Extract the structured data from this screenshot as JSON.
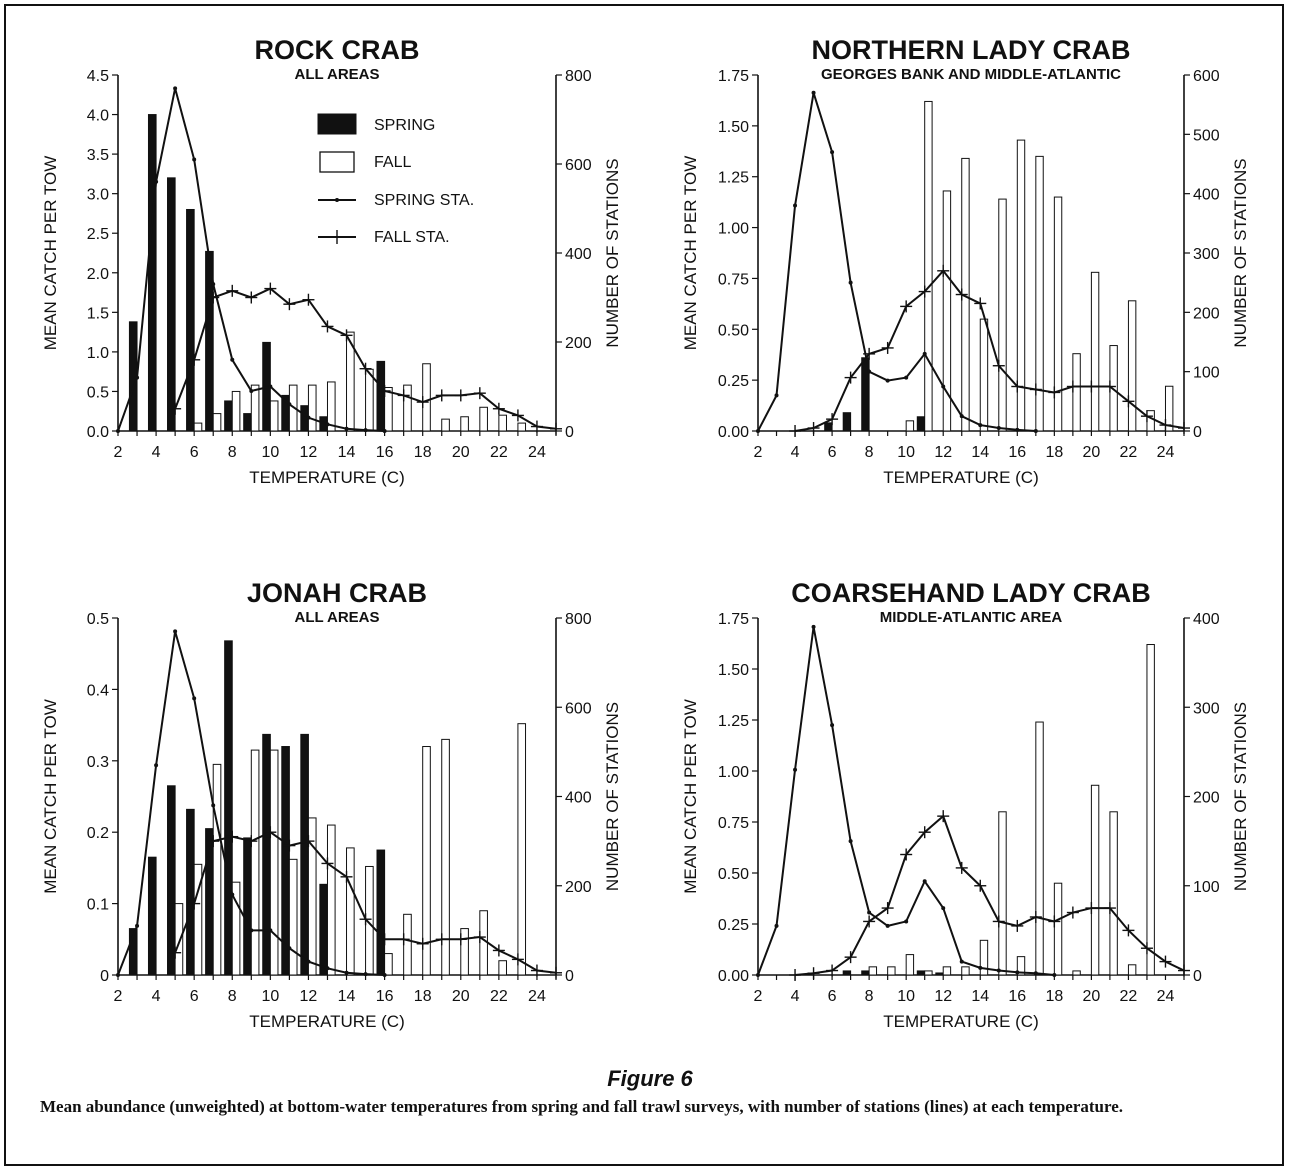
{
  "figure": {
    "label": "Figure 6",
    "caption": "Mean abundance (unweighted) at bottom-water temperatures from spring and fall trawl surveys, with number of stations (lines) at each temperature."
  },
  "legend": {
    "spring": "SPRING",
    "fall": "FALL",
    "spring_sta": "SPRING STA.",
    "fall_sta": "FALL STA."
  },
  "chart_data": [
    {
      "type": "bar",
      "title": "ROCK CRAB",
      "subtitle": "ALL AREAS",
      "xlabel": "TEMPERATURE (C)",
      "ylabel": "MEAN CATCH PER TOW",
      "y2label": "NUMBER OF STATIONS",
      "x_ticks": [
        2,
        4,
        6,
        8,
        10,
        12,
        14,
        16,
        18,
        20,
        22,
        24
      ],
      "x_range": [
        2,
        25
      ],
      "ylim": [
        0,
        4.5
      ],
      "y_ticks": [
        "0.0",
        "0.5",
        "1.0",
        "1.5",
        "2.0",
        "2.5",
        "3.0",
        "3.5",
        "4.0",
        "4.5"
      ],
      "y2lim": [
        0,
        800
      ],
      "y2_ticks": [
        "0",
        "200",
        "400",
        "600",
        "800"
      ],
      "legend": true,
      "series": [
        {
          "name": "SPRING",
          "kind": "bar",
          "x": [
            3,
            4,
            5,
            6,
            7,
            8,
            9,
            10,
            11,
            12,
            13,
            16
          ],
          "values": [
            1.38,
            4.0,
            3.2,
            2.8,
            2.27,
            0.38,
            0.22,
            1.12,
            0.45,
            0.32,
            0.18,
            0.88
          ]
        },
        {
          "name": "FALL",
          "kind": "bar",
          "x": [
            6,
            7,
            8,
            9,
            10,
            11,
            12,
            13,
            14,
            15,
            16,
            17,
            18,
            19,
            20,
            21,
            22,
            23
          ],
          "values": [
            0.1,
            0.22,
            0.5,
            0.58,
            0.38,
            0.58,
            0.58,
            0.62,
            1.25,
            0.78,
            0.55,
            0.58,
            0.85,
            0.15,
            0.18,
            0.3,
            0.2,
            0.1
          ]
        },
        {
          "name": "SPRING STA.",
          "kind": "line",
          "axis": "right",
          "x": [
            2,
            3,
            4,
            5,
            6,
            7,
            8,
            9,
            10,
            11,
            12,
            13,
            14,
            15,
            16
          ],
          "values": [
            0,
            120,
            560,
            770,
            610,
            330,
            160,
            90,
            100,
            60,
            30,
            15,
            5,
            2,
            0
          ]
        },
        {
          "name": "FALL STA.",
          "kind": "line",
          "axis": "right",
          "x": [
            5,
            6,
            7,
            8,
            9,
            10,
            11,
            12,
            13,
            14,
            15,
            16,
            17,
            18,
            19,
            20,
            21,
            22,
            23,
            24,
            25
          ],
          "values": [
            50,
            160,
            300,
            315,
            300,
            320,
            285,
            295,
            235,
            215,
            140,
            90,
            80,
            65,
            80,
            80,
            85,
            50,
            35,
            10,
            5
          ]
        }
      ]
    },
    {
      "type": "bar",
      "title": "NORTHERN LADY CRAB",
      "subtitle": "GEORGES BANK AND MIDDLE-ATLANTIC",
      "xlabel": "TEMPERATURE (C)",
      "ylabel": "MEAN CATCH PER TOW",
      "y2label": "NUMBER OF STATIONS",
      "x_ticks": [
        2,
        4,
        6,
        8,
        10,
        12,
        14,
        16,
        18,
        20,
        22,
        24
      ],
      "x_range": [
        2,
        25
      ],
      "ylim": [
        0,
        1.75
      ],
      "y_ticks": [
        "0.00",
        "0.25",
        "0.50",
        "0.75",
        "1.00",
        "1.25",
        "1.50",
        "1.75"
      ],
      "y2lim": [
        0,
        600
      ],
      "y2_ticks": [
        "0",
        "100",
        "200",
        "300",
        "400",
        "500",
        "600"
      ],
      "legend": false,
      "series": [
        {
          "name": "SPRING",
          "kind": "bar",
          "x": [
            6,
            7,
            8,
            11
          ],
          "values": [
            0.04,
            0.09,
            0.36,
            0.07
          ]
        },
        {
          "name": "FALL",
          "kind": "bar",
          "x": [
            10,
            11,
            12,
            13,
            14,
            15,
            16,
            17,
            18,
            19,
            20,
            21,
            22,
            23,
            24
          ],
          "values": [
            0.05,
            1.62,
            1.18,
            1.34,
            0.55,
            1.14,
            1.43,
            1.35,
            1.15,
            0.38,
            0.78,
            0.42,
            0.64,
            0.1,
            0.22
          ]
        },
        {
          "name": "SPRING STA.",
          "kind": "line",
          "axis": "right",
          "x": [
            2,
            3,
            4,
            5,
            6,
            7,
            8,
            9,
            10,
            11,
            12,
            13,
            14,
            15,
            16,
            17
          ],
          "values": [
            0,
            60,
            380,
            570,
            470,
            250,
            100,
            85,
            90,
            130,
            75,
            25,
            10,
            5,
            2,
            0
          ]
        },
        {
          "name": "FALL STA.",
          "kind": "line",
          "axis": "right",
          "x": [
            4,
            5,
            6,
            7,
            8,
            9,
            10,
            11,
            12,
            13,
            14,
            15,
            16,
            17,
            18,
            19,
            20,
            21,
            22,
            23,
            24,
            25
          ],
          "values": [
            0,
            5,
            20,
            90,
            130,
            140,
            210,
            235,
            270,
            230,
            215,
            110,
            75,
            70,
            65,
            75,
            75,
            75,
            50,
            25,
            10,
            5
          ]
        }
      ]
    },
    {
      "type": "bar",
      "title": "JONAH CRAB",
      "subtitle": "ALL AREAS",
      "xlabel": "TEMPERATURE (C)",
      "ylabel": "MEAN CATCH PER TOW",
      "y2label": "NUMBER OF STATIONS",
      "x_ticks": [
        2,
        4,
        6,
        8,
        10,
        12,
        14,
        16,
        18,
        20,
        22,
        24
      ],
      "x_range": [
        2,
        25
      ],
      "ylim": [
        0,
        0.5
      ],
      "y_ticks": [
        "0",
        "0.1",
        "0.2",
        "0.3",
        "0.4",
        "0.5"
      ],
      "y2lim": [
        0,
        800
      ],
      "y2_ticks": [
        "0",
        "200",
        "400",
        "600",
        "800"
      ],
      "legend": false,
      "series": [
        {
          "name": "SPRING",
          "kind": "bar",
          "x": [
            3,
            4,
            5,
            6,
            7,
            8,
            9,
            10,
            11,
            12,
            13,
            16
          ],
          "values": [
            0.065,
            0.165,
            0.265,
            0.232,
            0.205,
            0.468,
            0.192,
            0.337,
            0.32,
            0.337,
            0.127,
            0.175
          ]
        },
        {
          "name": "FALL",
          "kind": "bar",
          "x": [
            5,
            6,
            7,
            8,
            9,
            10,
            11,
            12,
            13,
            14,
            15,
            16,
            17,
            18,
            19,
            20,
            21,
            22,
            23
          ],
          "values": [
            0.1,
            0.155,
            0.295,
            0.13,
            0.315,
            0.315,
            0.162,
            0.22,
            0.21,
            0.178,
            0.152,
            0.03,
            0.085,
            0.32,
            0.33,
            0.065,
            0.09,
            0.02,
            0.352
          ]
        },
        {
          "name": "SPRING STA.",
          "kind": "line",
          "axis": "right",
          "x": [
            2,
            3,
            4,
            5,
            6,
            7,
            8,
            9,
            10,
            11,
            12,
            13,
            14,
            15,
            16
          ],
          "values": [
            0,
            110,
            470,
            770,
            620,
            380,
            180,
            100,
            100,
            60,
            30,
            15,
            5,
            2,
            0
          ]
        },
        {
          "name": "FALL STA.",
          "kind": "line",
          "axis": "right",
          "x": [
            5,
            6,
            7,
            8,
            9,
            10,
            11,
            12,
            13,
            14,
            15,
            16,
            17,
            18,
            19,
            20,
            21,
            22,
            23,
            24,
            25
          ],
          "values": [
            50,
            160,
            300,
            310,
            300,
            320,
            290,
            300,
            250,
            220,
            125,
            80,
            80,
            70,
            80,
            80,
            85,
            55,
            35,
            10,
            5
          ]
        }
      ]
    },
    {
      "type": "bar",
      "title": "COARSEHAND LADY CRAB",
      "subtitle": "MIDDLE-ATLANTIC AREA",
      "xlabel": "TEMPERATURE (C)",
      "ylabel": "MEAN CATCH PER TOW",
      "y2label": "NUMBER OF STATIONS",
      "x_ticks": [
        2,
        4,
        6,
        8,
        10,
        12,
        14,
        16,
        18,
        20,
        22,
        24
      ],
      "x_range": [
        2,
        25
      ],
      "ylim": [
        0,
        1.75
      ],
      "y_ticks": [
        "0.00",
        "0.25",
        "0.50",
        "0.75",
        "1.00",
        "1.25",
        "1.50",
        "1.75"
      ],
      "y2lim": [
        0,
        400
      ],
      "y2_ticks": [
        "0",
        "100",
        "200",
        "300",
        "400"
      ],
      "legend": false,
      "series": [
        {
          "name": "SPRING",
          "kind": "bar",
          "x": [
            7,
            8,
            11,
            12
          ],
          "values": [
            0.02,
            0.02,
            0.02,
            0.01
          ]
        },
        {
          "name": "FALL",
          "kind": "bar",
          "x": [
            8,
            9,
            10,
            11,
            12,
            13,
            14,
            15,
            16,
            17,
            18,
            19,
            20,
            21,
            22,
            23
          ],
          "values": [
            0.04,
            0.04,
            0.1,
            0.02,
            0.04,
            0.04,
            0.17,
            0.8,
            0.09,
            1.24,
            0.45,
            0.02,
            0.93,
            0.8,
            0.05,
            1.62
          ]
        },
        {
          "name": "SPRING STA.",
          "kind": "line",
          "axis": "right",
          "x": [
            2,
            3,
            4,
            5,
            6,
            7,
            8,
            9,
            10,
            11,
            12,
            13,
            14,
            15,
            16,
            17,
            18
          ],
          "values": [
            0,
            55,
            230,
            390,
            280,
            150,
            70,
            55,
            60,
            105,
            75,
            15,
            8,
            5,
            3,
            2,
            0
          ]
        },
        {
          "name": "FALL STA.",
          "kind": "line",
          "axis": "right",
          "x": [
            4,
            5,
            6,
            7,
            8,
            9,
            10,
            11,
            12,
            13,
            14,
            15,
            16,
            17,
            18,
            19,
            20,
            21,
            22,
            23,
            24,
            25
          ],
          "values": [
            0,
            2,
            5,
            20,
            60,
            75,
            135,
            160,
            178,
            120,
            100,
            60,
            55,
            65,
            60,
            70,
            75,
            75,
            50,
            30,
            15,
            5
          ]
        }
      ]
    }
  ]
}
